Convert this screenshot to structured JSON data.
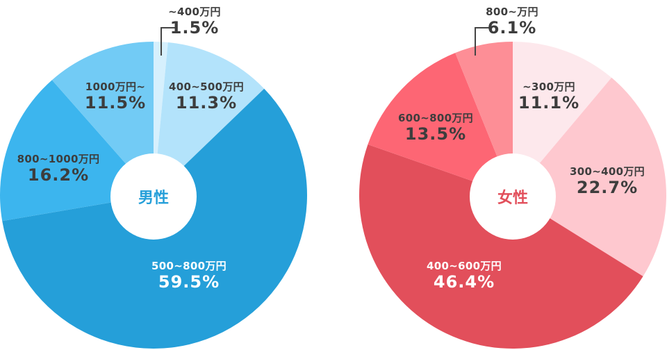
{
  "chart_data": [
    {
      "type": "pie",
      "title": "男性",
      "title_color": "#259fd9",
      "slices": [
        {
          "label": "~400万円",
          "value": 1.5,
          "display": "1.5%",
          "color": "#d6f0fd"
        },
        {
          "label": "400~500万円",
          "value": 11.3,
          "display": "11.3%",
          "color": "#b3e3fb"
        },
        {
          "label": "500~800万円",
          "value": 59.5,
          "display": "59.5%",
          "color": "#259fd9"
        },
        {
          "label": "800~1000万円",
          "value": 16.2,
          "display": "16.2%",
          "color": "#3cb5ee"
        },
        {
          "label": "1000万円~",
          "value": 11.5,
          "display": "11.5%",
          "color": "#72cbf5"
        }
      ]
    },
    {
      "type": "pie",
      "title": "女性",
      "title_color": "#e24f5b",
      "slices": [
        {
          "label": "~300万円",
          "value": 11.1,
          "display": "11.1%",
          "color": "#fde8ec"
        },
        {
          "label": "300~400万円",
          "value": 22.7,
          "display": "22.7%",
          "color": "#fec8cf"
        },
        {
          "label": "400~600万円",
          "value": 46.4,
          "display": "46.4%",
          "color": "#e24f5b"
        },
        {
          "label": "600~800万円",
          "value": 13.5,
          "display": "13.5%",
          "color": "#fd6674"
        },
        {
          "label": "800~万円",
          "value": 6.1,
          "display": "6.1%",
          "color": "#fd8e96"
        }
      ]
    }
  ]
}
